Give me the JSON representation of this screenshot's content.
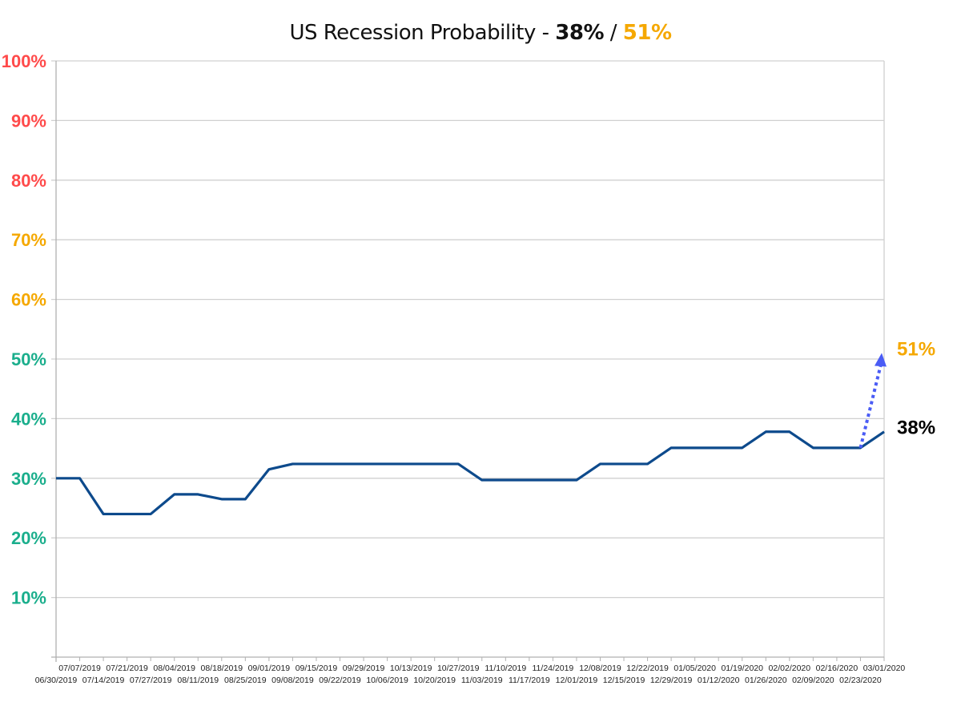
{
  "chart_data": {
    "type": "line",
    "title": {
      "prefix": "US Recession Probability - ",
      "current": "38%",
      "separator": " / ",
      "projected": "51%"
    },
    "xlabel": "",
    "ylabel": "",
    "ylim": [
      0,
      100
    ],
    "yticks": [
      {
        "label": "10%",
        "value": 10,
        "color": "#1aae8c"
      },
      {
        "label": "20%",
        "value": 20,
        "color": "#1aae8c"
      },
      {
        "label": "30%",
        "value": 30,
        "color": "#1aae8c"
      },
      {
        "label": "40%",
        "value": 40,
        "color": "#1aae8c"
      },
      {
        "label": "50%",
        "value": 50,
        "color": "#1aae8c"
      },
      {
        "label": "60%",
        "value": 60,
        "color": "#f5a800"
      },
      {
        "label": "70%",
        "value": 70,
        "color": "#f5a800"
      },
      {
        "label": "80%",
        "value": 80,
        "color": "#ff4a4a"
      },
      {
        "label": "90%",
        "value": 90,
        "color": "#ff4a4a"
      },
      {
        "label": "100%",
        "value": 100,
        "color": "#ff4a4a"
      }
    ],
    "grid": true,
    "legend": "none",
    "categories": [
      "06/30/2019",
      "07/07/2019",
      "07/14/2019",
      "07/21/2019",
      "07/27/2019",
      "08/04/2019",
      "08/11/2019",
      "08/18/2019",
      "08/25/2019",
      "09/01/2019",
      "09/08/2019",
      "09/15/2019",
      "09/22/2019",
      "09/29/2019",
      "10/06/2019",
      "10/13/2019",
      "10/20/2019",
      "10/27/2019",
      "11/03/2019",
      "11/10/2019",
      "11/17/2019",
      "11/24/2019",
      "12/01/2019",
      "12/08/2019",
      "12/15/2019",
      "12/22/2019",
      "12/29/2019",
      "01/05/2020",
      "01/12/2020",
      "01/19/2020",
      "01/26/2020",
      "02/02/2020",
      "02/09/2020",
      "02/16/2020",
      "02/23/2020",
      "03/01/2020"
    ],
    "series": [
      {
        "color": "#0d4a8c",
        "values": [
          30,
          30,
          24,
          24,
          24,
          27.3,
          27.3,
          26.5,
          26.5,
          31.5,
          32.4,
          32.4,
          32.4,
          32.4,
          32.4,
          32.4,
          32.4,
          32.4,
          29.7,
          29.7,
          29.7,
          29.7,
          29.7,
          32.4,
          32.4,
          32.4,
          35.1,
          35.1,
          35.1,
          35.1,
          37.8,
          37.8,
          35.1,
          35.1,
          35.1,
          37.8
        ]
      }
    ],
    "annotations": [
      {
        "text": "38%",
        "value": 38,
        "color": "#000000"
      },
      {
        "text": "51%",
        "value": 51,
        "color": "#f5a800",
        "arrow_from": "02/23/2020",
        "arrow_from_value": 35.1,
        "arrow_color": "#4a5cf5",
        "arrow_style": "dotted"
      }
    ]
  }
}
